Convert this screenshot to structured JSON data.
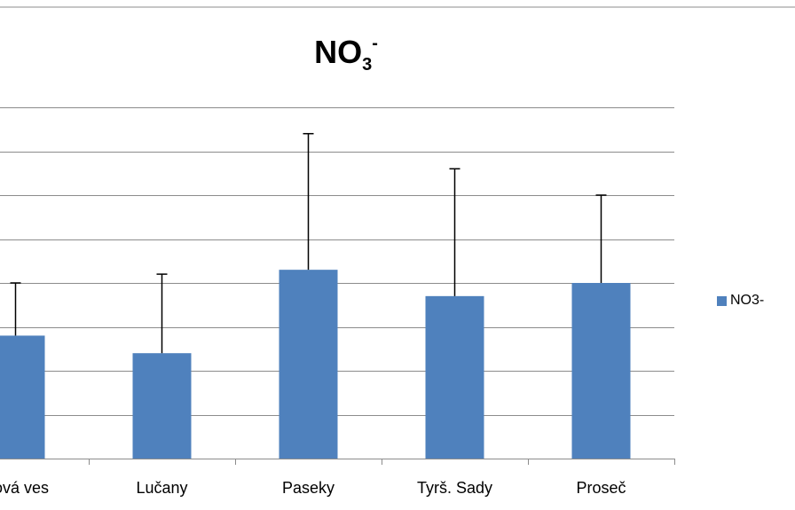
{
  "chart_data": {
    "type": "bar",
    "title": {
      "base": "NO",
      "subscript": "3",
      "superscript": "-"
    },
    "categories": [
      "Nová ves",
      "Lučany",
      "Paseky",
      "Tyrš. Sady",
      "Proseč"
    ],
    "series": [
      {
        "name": "NO3-",
        "color": "#4f81bd",
        "values": [
          2.8,
          2.4,
          4.3,
          3.7,
          4.0
        ],
        "error_plus": [
          1.2,
          1.8,
          3.1,
          2.9,
          2.0
        ]
      }
    ],
    "ylim": [
      0,
      8
    ],
    "y_tick_step": 1,
    "y_tick_labels_visible": false,
    "grid": true,
    "legend_position": "right",
    "xlabel": "",
    "ylabel": ""
  }
}
